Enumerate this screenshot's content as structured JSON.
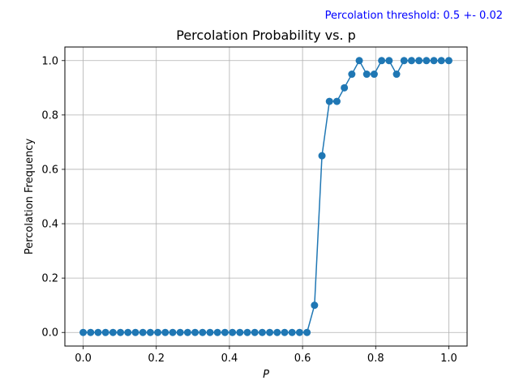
{
  "chart_data": {
    "type": "line",
    "title": "Percolation Probability vs. p",
    "xlabel": "P",
    "ylabel": "Percolation Frequency",
    "annotation": "Percolation threshold: 0.5 +- 0.02",
    "xlim": [
      -0.05,
      1.05
    ],
    "ylim": [
      -0.05,
      1.05
    ],
    "xticks": [
      "0.0",
      "0.2",
      "0.4",
      "0.6",
      "0.8",
      "1.0"
    ],
    "yticks": [
      "0.0",
      "0.2",
      "0.4",
      "0.6",
      "0.8",
      "1.0"
    ],
    "grid": true,
    "marker": "circle",
    "series": [
      {
        "x": [
          0.0,
          0.0204,
          0.0408,
          0.0612,
          0.0816,
          0.102,
          0.1224,
          0.1429,
          0.1633,
          0.1837,
          0.2041,
          0.2245,
          0.2449,
          0.2653,
          0.2857,
          0.3061,
          0.3265,
          0.3469,
          0.3673,
          0.3878,
          0.4082,
          0.4286,
          0.449,
          0.4694,
          0.4898,
          0.5102,
          0.5306,
          0.551,
          0.5714,
          0.5918,
          0.6122,
          0.6327,
          0.6531,
          0.6735,
          0.6939,
          0.7143,
          0.7347,
          0.7551,
          0.7755,
          0.7959,
          0.8163,
          0.8367,
          0.8571,
          0.8776,
          0.898,
          0.9184,
          0.9388,
          0.9592,
          0.9796,
          1.0
        ],
        "y": [
          0,
          0,
          0,
          0,
          0,
          0,
          0,
          0,
          0,
          0,
          0,
          0,
          0,
          0,
          0,
          0,
          0,
          0,
          0,
          0,
          0,
          0,
          0,
          0,
          0,
          0,
          0,
          0,
          0,
          0,
          0,
          0.1,
          0.65,
          0.85,
          0.85,
          0.9,
          0.95,
          1.0,
          0.95,
          0.95,
          1.0,
          1.0,
          0.95,
          1.0,
          1.0,
          1.0,
          1.0,
          1.0,
          1.0,
          1.0
        ]
      }
    ],
    "colors": {
      "series": "#1f77b4",
      "annotation": "#0000ff",
      "grid": "#b0b0b0",
      "axes": "#000000"
    }
  }
}
